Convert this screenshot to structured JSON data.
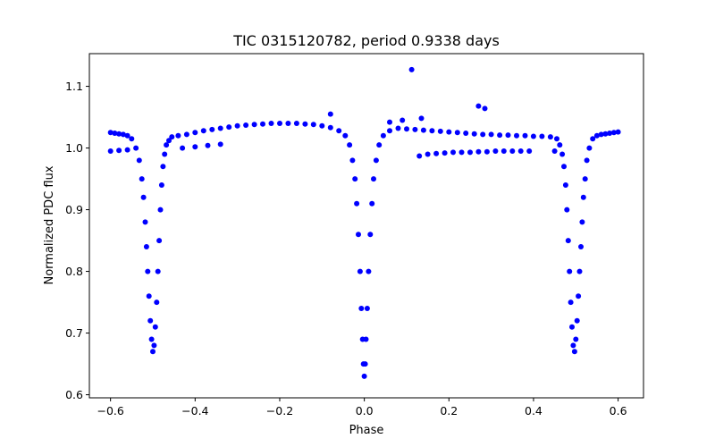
{
  "chart_data": {
    "type": "scatter",
    "title": "TIC 0315120782, period 0.9338 days",
    "xlabel": "Phase",
    "ylabel": "Normalized PDC flux",
    "xlim": [
      -0.65,
      0.66
    ],
    "ylim": [
      0.595,
      1.153
    ],
    "xticks": [
      -0.6,
      -0.4,
      -0.2,
      0.0,
      0.2,
      0.4,
      0.6
    ],
    "xtick_labels": [
      "−0.6",
      "−0.4",
      "−0.2",
      "0.0",
      "0.2",
      "0.4",
      "0.6"
    ],
    "yticks": [
      0.6,
      0.7,
      0.8,
      0.9,
      1.0,
      1.1
    ],
    "ytick_labels": [
      "0.6",
      "0.7",
      "0.8",
      "0.9",
      "1.0",
      "1.1"
    ],
    "grid": false,
    "legend": "none",
    "marker_color": "#0000ff",
    "series": [
      {
        "x": [
          -0.6,
          -0.59,
          -0.58,
          -0.57,
          -0.56,
          -0.55,
          -0.54,
          -0.532,
          -0.526,
          -0.522,
          -0.518,
          -0.515,
          -0.512,
          -0.509,
          -0.506,
          -0.503,
          -0.5,
          -0.497,
          -0.494,
          -0.491,
          -0.488,
          -0.485,
          -0.482,
          -0.479,
          -0.476,
          -0.472,
          -0.468,
          -0.462,
          -0.455,
          -0.44,
          -0.42,
          -0.4,
          -0.38,
          -0.36,
          -0.34,
          -0.32,
          -0.3,
          -0.28,
          -0.26,
          -0.24,
          -0.22,
          -0.2,
          -0.18,
          -0.16,
          -0.14,
          -0.12,
          -0.1,
          -0.08,
          -0.06,
          -0.045,
          -0.035,
          -0.028,
          -0.022,
          -0.018,
          -0.014,
          -0.01,
          -0.007,
          -0.004,
          -0.002,
          0.0,
          0.002,
          0.004,
          0.007,
          0.01,
          0.014,
          0.018,
          0.022,
          0.028,
          0.035,
          0.045,
          0.06,
          0.08,
          0.1,
          0.12,
          0.14,
          0.16,
          0.18,
          0.2,
          0.22,
          0.24,
          0.26,
          0.28,
          0.3,
          0.32,
          0.34,
          0.36,
          0.38,
          0.4,
          0.42,
          0.44,
          0.455,
          0.462,
          0.468,
          0.472,
          0.476,
          0.479,
          0.482,
          0.485,
          0.488,
          0.491,
          0.494,
          0.497,
          0.5,
          0.503,
          0.506,
          0.509,
          0.512,
          0.515,
          0.518,
          0.522,
          0.526,
          0.532,
          0.54,
          0.55,
          0.56,
          0.57,
          0.58,
          0.59,
          0.6
        ],
        "y": [
          1.025,
          1.024,
          1.023,
          1.022,
          1.02,
          1.015,
          1.0,
          0.98,
          0.95,
          0.92,
          0.88,
          0.84,
          0.8,
          0.76,
          0.72,
          0.69,
          0.67,
          0.68,
          0.71,
          0.75,
          0.8,
          0.85,
          0.9,
          0.94,
          0.97,
          0.99,
          1.005,
          1.012,
          1.018,
          1.02,
          1.022,
          1.025,
          1.028,
          1.03,
          1.032,
          1.034,
          1.036,
          1.037,
          1.038,
          1.039,
          1.04,
          1.04,
          1.04,
          1.04,
          1.039,
          1.038,
          1.036,
          1.033,
          1.028,
          1.02,
          1.005,
          0.98,
          0.95,
          0.91,
          0.86,
          0.8,
          0.74,
          0.69,
          0.65,
          0.63,
          0.65,
          0.69,
          0.74,
          0.8,
          0.86,
          0.91,
          0.95,
          0.98,
          1.005,
          1.02,
          1.028,
          1.032,
          1.031,
          1.03,
          1.029,
          1.028,
          1.027,
          1.026,
          1.025,
          1.024,
          1.023,
          1.022,
          1.022,
          1.021,
          1.021,
          1.02,
          1.02,
          1.019,
          1.019,
          1.018,
          1.015,
          1.005,
          0.99,
          0.97,
          0.94,
          0.9,
          0.85,
          0.8,
          0.75,
          0.71,
          0.68,
          0.67,
          0.69,
          0.72,
          0.76,
          0.8,
          0.84,
          0.88,
          0.92,
          0.95,
          0.98,
          1.0,
          1.015,
          1.02,
          1.022,
          1.023,
          1.024,
          1.025,
          1.026
        ]
      },
      {
        "x": [
          0.112,
          0.135,
          0.27,
          0.285,
          0.09,
          0.06,
          0.13,
          0.15,
          0.17,
          0.19,
          0.21,
          0.23,
          0.25,
          0.27,
          0.29,
          0.31,
          0.33,
          0.35,
          0.37,
          0.39,
          0.45,
          -0.6,
          -0.58,
          -0.56,
          -0.43,
          -0.4,
          -0.37,
          -0.34,
          -0.08
        ],
        "y": [
          1.127,
          1.048,
          1.068,
          1.064,
          1.045,
          1.042,
          0.987,
          0.99,
          0.991,
          0.992,
          0.993,
          0.993,
          0.993,
          0.994,
          0.994,
          0.995,
          0.995,
          0.995,
          0.995,
          0.995,
          0.995,
          0.995,
          0.996,
          0.997,
          1.0,
          1.002,
          1.004,
          1.006,
          1.055
        ]
      }
    ]
  }
}
